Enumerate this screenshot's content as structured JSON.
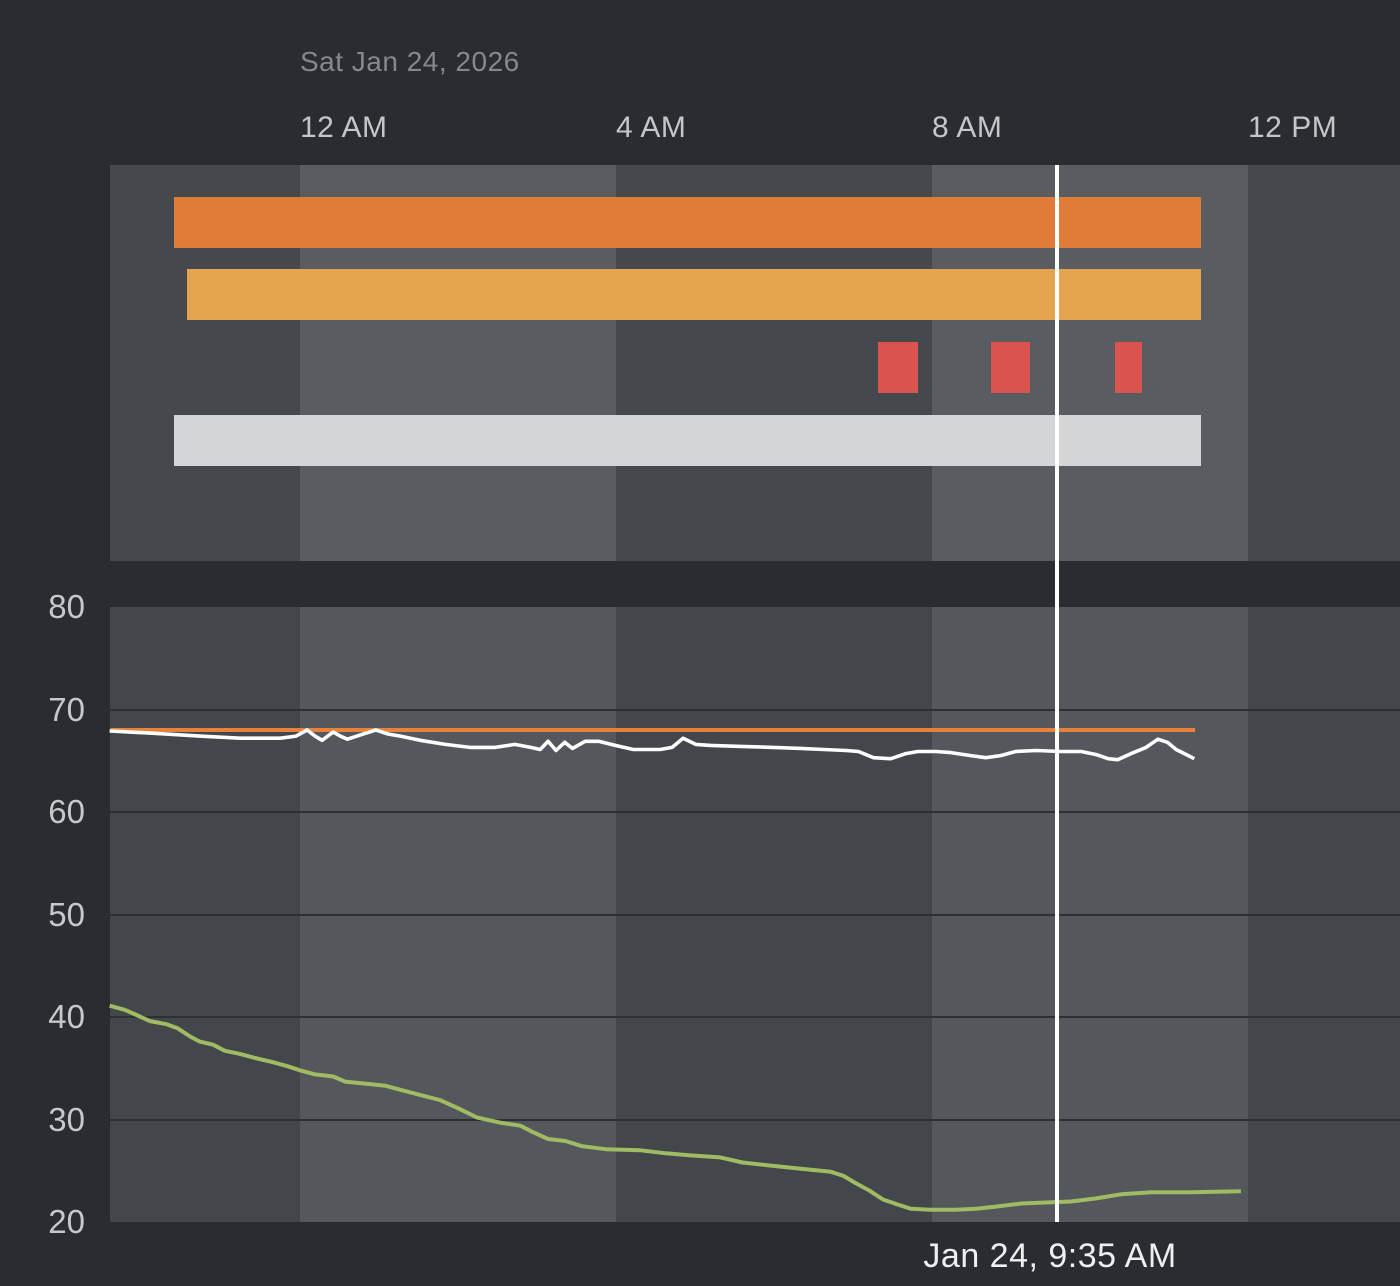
{
  "header": {
    "date_label": "Sat Jan 24, 2026"
  },
  "x_axis": {
    "ticks": [
      {
        "label": "12 AM",
        "hour": 0
      },
      {
        "label": "4 AM",
        "hour": 4
      },
      {
        "label": "8 AM",
        "hour": 8
      },
      {
        "label": "12 PM",
        "hour": 12
      }
    ]
  },
  "y_axis": {
    "tick_labels": [
      "80",
      "70",
      "60",
      "50",
      "40",
      "30",
      "20"
    ],
    "tick_values": [
      80,
      70,
      60,
      50,
      40,
      30,
      20
    ]
  },
  "cursor": {
    "hour": 9.583,
    "label": "Jan 24, 9:35 AM",
    "color": "#ffffff"
  },
  "colors": {
    "page_bg": "#292c31",
    "top_panel_dark": "#45484d",
    "top_panel_light": "#595c61",
    "bottom_panel_dark": "#43464b",
    "bottom_panel_light": "#54575c",
    "gridline": "#2c2f34",
    "axis_label": "#c5c7c9",
    "date_label": "#85888c",
    "timestamp": "#edeff0"
  },
  "chart_data": [
    {
      "type": "timeline",
      "x_unit": "hours_from_midnight",
      "x_range": [
        -2.4,
        13.92
      ],
      "rows": [
        {
          "name": "orange-bar",
          "color": "#e17c38",
          "segments": [
            [
              -1.6,
              11.41
            ]
          ]
        },
        {
          "name": "amber-bar",
          "color": "#e5a450",
          "segments": [
            [
              -1.43,
              11.41
            ]
          ]
        },
        {
          "name": "red-events",
          "color": "#d9534f",
          "segments": [
            [
              7.32,
              7.82
            ],
            [
              8.75,
              9.24
            ],
            [
              10.32,
              10.66
            ]
          ]
        },
        {
          "name": "gray-bar",
          "color": "#d4d5d7",
          "segments": [
            [
              -1.6,
              11.41
            ]
          ]
        }
      ]
    },
    {
      "type": "line",
      "x_unit": "hours_from_midnight",
      "ylim": [
        20,
        80
      ],
      "grid_values": [
        70,
        60,
        50,
        40,
        30
      ],
      "series": [
        {
          "name": "orange-flat-line",
          "color": "#e6823b",
          "width": 4,
          "points": [
            [
              -2.4,
              68
            ],
            [
              11.33,
              68
            ]
          ]
        },
        {
          "name": "white-line",
          "color": "#fdfdfd",
          "width": 3.6,
          "points": [
            [
              -2.41,
              67.9
            ],
            [
              -1.9,
              67.7
            ],
            [
              -1.27,
              67.4
            ],
            [
              -0.76,
              67.2
            ],
            [
              -0.25,
              67.2
            ],
            [
              -0.05,
              67.4
            ],
            [
              0.09,
              68.0
            ],
            [
              0.19,
              67.4
            ],
            [
              0.28,
              67.0
            ],
            [
              0.42,
              67.8
            ],
            [
              0.51,
              67.4
            ],
            [
              0.6,
              67.1
            ],
            [
              0.76,
              67.5
            ],
            [
              0.96,
              68.0
            ],
            [
              1.12,
              67.6
            ],
            [
              1.27,
              67.4
            ],
            [
              1.52,
              67.0
            ],
            [
              1.84,
              66.6
            ],
            [
              2.15,
              66.3
            ],
            [
              2.47,
              66.3
            ],
            [
              2.72,
              66.6
            ],
            [
              2.92,
              66.3
            ],
            [
              3.04,
              66.1
            ],
            [
              3.14,
              66.9
            ],
            [
              3.24,
              66.0
            ],
            [
              3.35,
              66.8
            ],
            [
              3.45,
              66.2
            ],
            [
              3.61,
              66.9
            ],
            [
              3.78,
              66.9
            ],
            [
              3.99,
              66.5
            ],
            [
              4.22,
              66.1
            ],
            [
              4.56,
              66.1
            ],
            [
              4.71,
              66.3
            ],
            [
              4.85,
              67.2
            ],
            [
              5.01,
              66.6
            ],
            [
              5.2,
              66.5
            ],
            [
              5.58,
              66.4
            ],
            [
              5.99,
              66.3
            ],
            [
              6.34,
              66.2
            ],
            [
              6.63,
              66.1
            ],
            [
              6.91,
              66.0
            ],
            [
              7.07,
              65.9
            ],
            [
              7.26,
              65.3
            ],
            [
              7.48,
              65.2
            ],
            [
              7.67,
              65.7
            ],
            [
              7.82,
              65.9
            ],
            [
              8.05,
              65.9
            ],
            [
              8.24,
              65.8
            ],
            [
              8.49,
              65.5
            ],
            [
              8.68,
              65.3
            ],
            [
              8.87,
              65.5
            ],
            [
              9.06,
              65.9
            ],
            [
              9.32,
              66.0
            ],
            [
              9.63,
              65.9
            ],
            [
              9.89,
              65.9
            ],
            [
              10.08,
              65.6
            ],
            [
              10.23,
              65.2
            ],
            [
              10.35,
              65.1
            ],
            [
              10.52,
              65.7
            ],
            [
              10.71,
              66.3
            ],
            [
              10.86,
              67.1
            ],
            [
              10.98,
              66.8
            ],
            [
              11.09,
              66.1
            ],
            [
              11.22,
              65.6
            ],
            [
              11.32,
              65.2
            ]
          ]
        },
        {
          "name": "green-line",
          "color": "#9fbb63",
          "width": 4,
          "points": [
            [
              -2.41,
              41.1
            ],
            [
              -2.22,
              40.7
            ],
            [
              -2.07,
              40.2
            ],
            [
              -1.9,
              39.6
            ],
            [
              -1.69,
              39.3
            ],
            [
              -1.55,
              38.9
            ],
            [
              -1.39,
              38.1
            ],
            [
              -1.27,
              37.6
            ],
            [
              -1.1,
              37.3
            ],
            [
              -0.95,
              36.7
            ],
            [
              -0.76,
              36.4
            ],
            [
              -0.57,
              36.0
            ],
            [
              -0.35,
              35.6
            ],
            [
              -0.16,
              35.2
            ],
            [
              0.0,
              34.8
            ],
            [
              0.19,
              34.4
            ],
            [
              0.42,
              34.2
            ],
            [
              0.57,
              33.7
            ],
            [
              0.82,
              33.5
            ],
            [
              1.08,
              33.3
            ],
            [
              1.27,
              32.9
            ],
            [
              1.52,
              32.4
            ],
            [
              1.77,
              31.9
            ],
            [
              2.0,
              31.1
            ],
            [
              2.24,
              30.2
            ],
            [
              2.53,
              29.7
            ],
            [
              2.79,
              29.4
            ],
            [
              2.94,
              28.8
            ],
            [
              3.14,
              28.1
            ],
            [
              3.36,
              27.9
            ],
            [
              3.57,
              27.4
            ],
            [
              3.87,
              27.1
            ],
            [
              4.31,
              27.0
            ],
            [
              4.63,
              26.7
            ],
            [
              4.94,
              26.5
            ],
            [
              5.32,
              26.3
            ],
            [
              5.6,
              25.8
            ],
            [
              5.96,
              25.5
            ],
            [
              6.34,
              25.2
            ],
            [
              6.72,
              24.9
            ],
            [
              6.88,
              24.5
            ],
            [
              7.03,
              23.8
            ],
            [
              7.2,
              23.1
            ],
            [
              7.38,
              22.2
            ],
            [
              7.57,
              21.7
            ],
            [
              7.73,
              21.3
            ],
            [
              7.98,
              21.2
            ],
            [
              8.3,
              21.2
            ],
            [
              8.56,
              21.3
            ],
            [
              8.81,
              21.5
            ],
            [
              9.13,
              21.8
            ],
            [
              9.44,
              21.9
            ],
            [
              9.76,
              22.0
            ],
            [
              10.08,
              22.3
            ],
            [
              10.39,
              22.7
            ],
            [
              10.77,
              22.9
            ],
            [
              11.28,
              22.9
            ],
            [
              11.91,
              23.0
            ]
          ]
        }
      ]
    }
  ]
}
